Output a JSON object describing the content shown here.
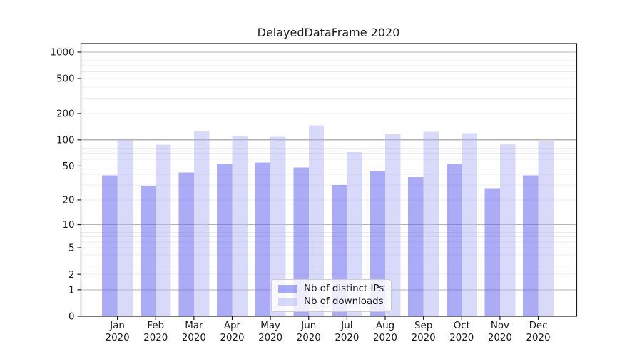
{
  "chart_data": {
    "type": "bar",
    "title": "DelayedDataFrame 2020",
    "x": {
      "categories": [
        "Jan",
        "Feb",
        "Mar",
        "Apr",
        "May",
        "Jun",
        "Jul",
        "Aug",
        "Sep",
        "Oct",
        "Nov",
        "Dec"
      ],
      "sublabel": "2020"
    },
    "y": {
      "scale": "symlog-log1p",
      "ticks": [
        0,
        1,
        2,
        5,
        10,
        20,
        50,
        100,
        200,
        500,
        1000
      ],
      "ylim": [
        0,
        1250
      ],
      "major_gridlines": [
        1,
        10,
        100,
        1000
      ],
      "grid": true
    },
    "series": [
      {
        "name": "Nb of distinct IPs",
        "color": "rgba(102,102,238,0.55)",
        "values": [
          39,
          29,
          42,
          53,
          55,
          48,
          30,
          44,
          37,
          53,
          27,
          39
        ]
      },
      {
        "name": "Nb of downloads",
        "color": "rgba(180,180,245,0.5)",
        "values": [
          100,
          88,
          126,
          109,
          108,
          147,
          72,
          116,
          124,
          119,
          89,
          96
        ]
      }
    ],
    "legend_position": "lower center",
    "colors": {
      "major_grid": "#b3b3b3",
      "minor_grid": "#ececec",
      "spine": "#1a1a1a",
      "text": "#1a1a1a"
    }
  }
}
